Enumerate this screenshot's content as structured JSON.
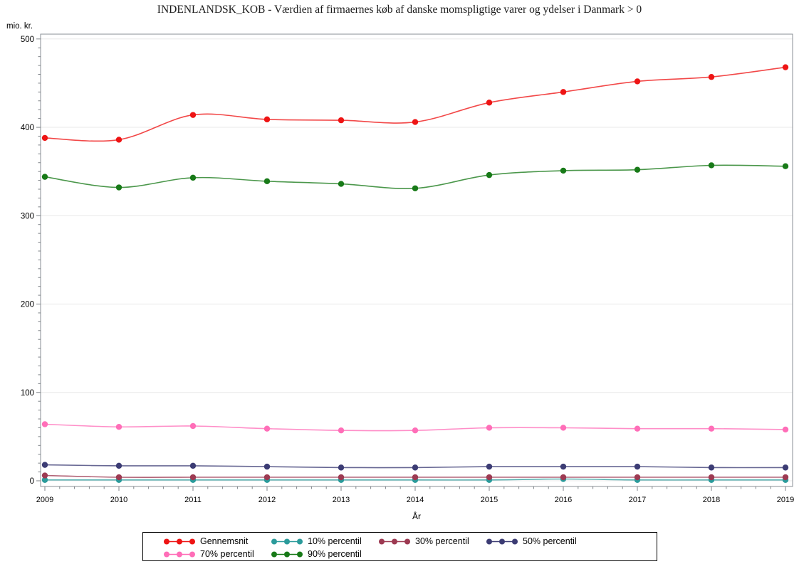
{
  "chart_title": "INDENLANDSK_KOB - Værdien af firmaernes køb af danske momspligtige varer og ydelser i Danmark > 0",
  "chart_data": {
    "type": "line",
    "title": "INDENLANDSK_KOB - Værdien af firmaernes køb af danske momspligtige varer og ydelser i Danmark > 0",
    "ylabel": "mio. kr.",
    "xlabel": "År",
    "x": [
      2009,
      2010,
      2011,
      2012,
      2013,
      2014,
      2015,
      2016,
      2017,
      2018,
      2019
    ],
    "ylim": [
      0,
      500
    ],
    "y_ticks": [
      0,
      100,
      200,
      300,
      400,
      500
    ],
    "y_minor_step": 10,
    "x_minor_per_interval": 4,
    "grid": true,
    "legend_position": "bottom",
    "marker": "filled-circle",
    "line_style": "smooth",
    "series": [
      {
        "name": "Gennemsnit",
        "color": "#ee1414",
        "values": [
          388,
          386,
          414,
          409,
          408,
          406,
          428,
          440,
          452,
          457,
          468
        ]
      },
      {
        "name": "10% percentil",
        "color": "#2b9b9b",
        "values": [
          1,
          1,
          1,
          1,
          1,
          1,
          1,
          2,
          1,
          1,
          1
        ]
      },
      {
        "name": "30% percentil",
        "color": "#9d3a52",
        "values": [
          6,
          4,
          4,
          4,
          4,
          4,
          4,
          4,
          4,
          4,
          4
        ]
      },
      {
        "name": "50% percentil",
        "color": "#3c3c74",
        "values": [
          18,
          17,
          17,
          16,
          15,
          15,
          16,
          16,
          16,
          15,
          15
        ]
      },
      {
        "name": "70% percentil",
        "color": "#ff6eb8",
        "values": [
          64,
          61,
          62,
          59,
          57,
          57,
          60,
          60,
          59,
          59,
          58
        ]
      },
      {
        "name": "90% percentil",
        "color": "#187a18",
        "values": [
          344,
          332,
          343,
          339,
          336,
          331,
          346,
          351,
          352,
          357,
          356
        ]
      }
    ],
    "colors": {
      "frame": "#8a8f94",
      "gridline": "#e8e8e8",
      "tick": "#7d8287",
      "label": "#000000"
    }
  }
}
